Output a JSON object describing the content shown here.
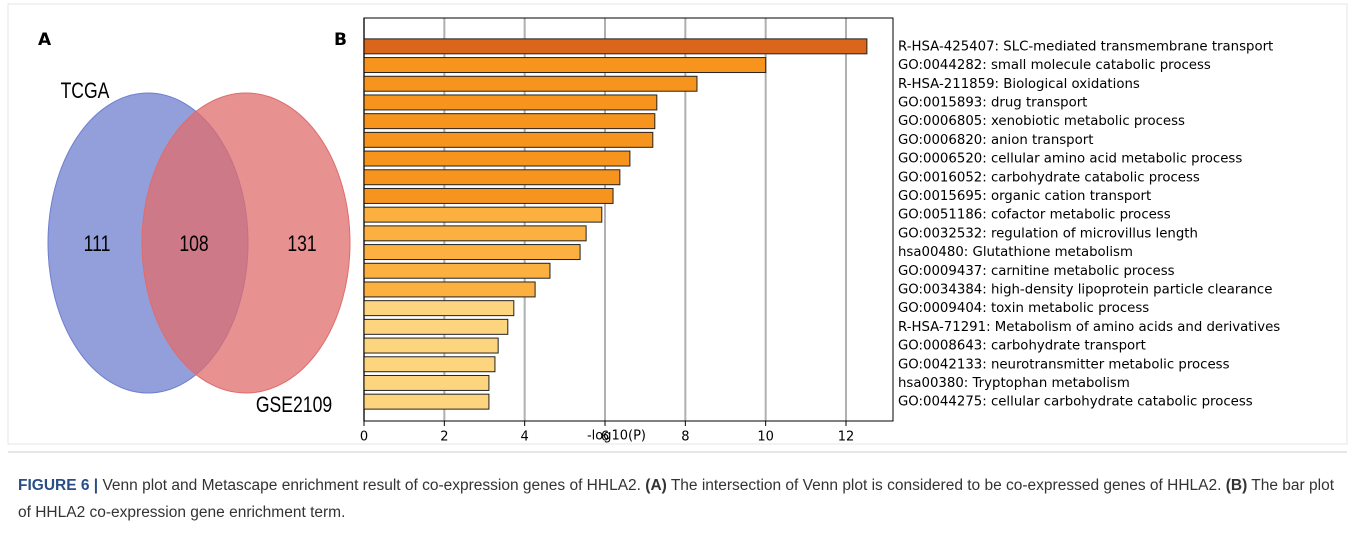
{
  "chart_data": [
    {
      "type": "venn",
      "panel": "A",
      "sets": [
        {
          "name": "TCGA",
          "color": "#6f7fcf"
        },
        {
          "name": "GSE2109",
          "color": "#e06c6c"
        }
      ],
      "regions": [
        111,
        108,
        131
      ]
    },
    {
      "type": "barh",
      "panel": "B",
      "xlabel": "-log10(P)",
      "categories": [
        "R-HSA-425407: SLC-mediated transmembrane transport",
        "GO:0044282: small molecule catabolic process",
        "R-HSA-211859: Biological oxidations",
        "GO:0015893: drug transport",
        "GO:0006805: xenobiotic metabolic process",
        "GO:0006820: anion transport",
        "GO:0006520: cellular amino acid metabolic process",
        "GO:0016052: carbohydrate catabolic process",
        "GO:0015695: organic cation transport",
        "GO:0051186: cofactor metabolic process",
        "GO:0032532: regulation of microvillus length",
        "hsa00480: Glutathione metabolism",
        "GO:0009437: carnitine metabolic process",
        "GO:0034384: high-density lipoprotein particle clearance",
        "GO:0009404: toxin metabolic process",
        "R-HSA-71291: Metabolism of amino acids and derivatives",
        "GO:0008643: carbohydrate transport",
        "GO:0042133: neurotransmitter metabolic process",
        "hsa00380: Tryptophan metabolism",
        "GO:0044275: cellular carbohydrate catabolic process"
      ],
      "values": [
        12.52,
        10.0,
        8.29,
        7.29,
        7.24,
        7.19,
        6.62,
        6.37,
        6.2,
        5.92,
        5.53,
        5.38,
        4.63,
        4.26,
        3.73,
        3.58,
        3.34,
        3.26,
        3.11,
        3.11
      ],
      "colors": [
        "#d9661a",
        "#f7941d",
        "#f7941d",
        "#f7941d",
        "#f7941d",
        "#f7941d",
        "#f7941d",
        "#f7941d",
        "#f7941d",
        "#fbb040",
        "#fbb040",
        "#fbb040",
        "#fbb040",
        "#fbb040",
        "#fdd57e",
        "#fdd57e",
        "#fdd57e",
        "#fdd57e",
        "#fdd57e",
        "#fdd57e"
      ],
      "xlim": [
        0,
        13.17
      ],
      "xticks": [
        0,
        2,
        4,
        6,
        8,
        10,
        12
      ],
      "grid": true
    }
  ],
  "caption": {
    "label": "FIGURE 6 |",
    "text": "Venn plot and Metascape enrichment result of co-expression genes of HHLA2.",
    "a_label": "(A)",
    "a_text": "The intersection of Venn plot is considered to be co-expressed genes of HHLA2.",
    "b_label": "(B)",
    "b_text": "The bar plot of HHLA2 co-expression gene enrichment term."
  }
}
